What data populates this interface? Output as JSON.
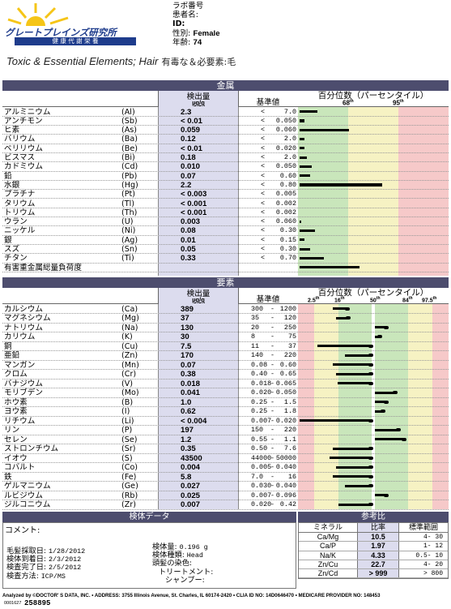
{
  "logo": {
    "name": "グレートプレインズ研究所",
    "tagline": "健 康   代 謝   栄 養"
  },
  "patient": {
    "lab_number_label": "ラボ番号",
    "name_label": "患者名:",
    "id_label": "ID:",
    "sex_label": "性別:",
    "sex": "Female",
    "age_label": "年齢:",
    "age": "74"
  },
  "report_title": {
    "en": "Toxic & Essential Elements; Hair",
    "jp_a": "有毒な＆必要素",
    "sep": ":",
    "jp_b": "毛"
  },
  "toxic": {
    "section_label": "金属",
    "col_result": "検出量",
    "col_unit": "µg/g",
    "col_ref": "基準値",
    "col_pct": "百分位数（パーセンタイル）",
    "pct_ticks": [
      "68",
      "95"
    ],
    "pct_tick_suffix": "th",
    "rows": [
      {
        "name": "アルミニウム",
        "sym": "(Al)",
        "result": "2.3",
        "lt": "<",
        "ref": "7.0",
        "bar": 0.12
      },
      {
        "name": "アンチモン",
        "sym": "(Sb)",
        "result": "< 0.01",
        "lt": "<",
        "ref": "0.050",
        "bar": 0.03
      },
      {
        "name": "ヒ素",
        "sym": "(As)",
        "result": "0.059",
        "lt": "<",
        "ref": "0.060",
        "bar": 0.33
      },
      {
        "name": "バリウム",
        "sym": "(Ba)",
        "result": "0.12",
        "lt": "<",
        "ref": "2.0",
        "bar": 0.03
      },
      {
        "name": "ベリリウム",
        "sym": "(Be)",
        "result": "< 0.01",
        "lt": "<",
        "ref": "0.020",
        "bar": 0.03
      },
      {
        "name": "ビスマス",
        "sym": "(Bi)",
        "result": "0.18",
        "lt": "<",
        "ref": "2.0",
        "bar": 0.05
      },
      {
        "name": "カドミウム",
        "sym": "(Cd)",
        "result": "0.010",
        "lt": "<",
        "ref": "0.050",
        "bar": 0.08
      },
      {
        "name": "鉛",
        "sym": "(Pb)",
        "result": "0.07",
        "lt": "<",
        "ref": "0.60",
        "bar": 0.07
      },
      {
        "name": "水銀",
        "sym": "(Hg)",
        "result": "2.2",
        "lt": "<",
        "ref": "0.80",
        "bar": 0.55
      },
      {
        "name": "プラチナ",
        "sym": "(Pt)",
        "result": "< 0.003",
        "lt": "<",
        "ref": "0.005",
        "bar": 0.0
      },
      {
        "name": "タリウム",
        "sym": "(Tl)",
        "result": "< 0.001",
        "lt": "<",
        "ref": "0.002",
        "bar": 0.0
      },
      {
        "name": "トリウム",
        "sym": "(Th)",
        "result": "< 0.001",
        "lt": "<",
        "ref": "0.002",
        "bar": 0.0
      },
      {
        "name": "ウラン",
        "sym": "(U)",
        "result": "0.003",
        "lt": "<",
        "ref": "0.060",
        "bar": 0.01
      },
      {
        "name": "ニッケル",
        "sym": "(Ni)",
        "result": "0.08",
        "lt": "<",
        "ref": "0.30",
        "bar": 0.1
      },
      {
        "name": "銀",
        "sym": "(Ag)",
        "result": "0.01",
        "lt": "<",
        "ref": "0.15",
        "bar": 0.03
      },
      {
        "name": "スズ",
        "sym": "(Sn)",
        "result": "0.05",
        "lt": "<",
        "ref": "0.30",
        "bar": 0.07
      },
      {
        "name": "チタン",
        "sym": "(Ti)",
        "result": "0.33",
        "lt": "<",
        "ref": "0.70",
        "bar": 0.16
      }
    ],
    "total_label": "有害重金属総量負荷度",
    "total_bar": 0.4
  },
  "essential": {
    "section_label": "要素",
    "col_result": "検出量",
    "col_unit": "µg/g",
    "col_ref": "基準値",
    "col_pct": "百分位数（パーセンタイル）",
    "pct_ticks": [
      "2.5",
      "16",
      "50",
      "84",
      "97.5"
    ],
    "pct_tick_suffix": "th",
    "rows": [
      {
        "name": "カルシウム",
        "sym": "(Ca)",
        "result": "389",
        "lo": "300",
        "hi": "1200",
        "from": 0.22,
        "to": 0.32
      },
      {
        "name": "マグネシウム",
        "sym": "(Mg)",
        "result": "37",
        "lo": "35",
        "hi": "120",
        "from": 0.24,
        "to": 0.33
      },
      {
        "name": "ナトリウム",
        "sym": "(Na)",
        "result": "130",
        "lo": "20",
        "hi": "250",
        "from": 0.5,
        "to": 0.58
      },
      {
        "name": "カリウム",
        "sym": "(K)",
        "result": "30",
        "lo": "8",
        "hi": "75",
        "from": 0.5,
        "to": 0.54
      },
      {
        "name": "銅",
        "sym": "(Cu)",
        "result": "7.5",
        "lo": "11",
        "hi": "37",
        "from": 0.12,
        "to": 0.48
      },
      {
        "name": "亜鉛",
        "sym": "(Zn)",
        "result": "170",
        "lo": "140",
        "hi": "220",
        "from": 0.3,
        "to": 0.48
      },
      {
        "name": "マンガン",
        "sym": "(Mn)",
        "result": "0.07",
        "lo": "0.08",
        "hi": "0.60",
        "from": 0.22,
        "to": 0.48
      },
      {
        "name": "クロム",
        "sym": "(Cr)",
        "result": "0.38",
        "lo": "0.40",
        "hi": "0.65",
        "from": 0.24,
        "to": 0.48
      },
      {
        "name": "バナジウム",
        "sym": "(V)",
        "result": "0.018",
        "lo": "0.018",
        "hi": "0.065",
        "from": 0.25,
        "to": 0.48
      },
      {
        "name": "モリブデン",
        "sym": "(Mo)",
        "result": "0.041",
        "lo": "0.020",
        "hi": "0.050",
        "from": 0.5,
        "to": 0.64
      },
      {
        "name": "ホウ素",
        "sym": "(B)",
        "result": "1.0",
        "lo": "0.25",
        "hi": "1.5",
        "from": 0.5,
        "to": 0.58
      },
      {
        "name": "ヨウ素",
        "sym": "(I)",
        "result": "0.62",
        "lo": "0.25",
        "hi": "1.8",
        "from": 0.5,
        "to": 0.56
      },
      {
        "name": "リチウム",
        "sym": "(Li)",
        "result": "< 0.004",
        "lo": "0.007",
        "hi": "0.020",
        "from": 0.0,
        "to": 0.48
      },
      {
        "name": "リン",
        "sym": "(P)",
        "result": "197",
        "lo": "150",
        "hi": "220",
        "from": 0.5,
        "to": 0.66
      },
      {
        "name": "セレン",
        "sym": "(Se)",
        "result": "1.2",
        "lo": "0.55",
        "hi": "1.1",
        "from": 0.5,
        "to": 0.7
      },
      {
        "name": "ストロンチウム",
        "sym": "(Sr)",
        "result": "0.35",
        "lo": "0.50",
        "hi": "7.6",
        "from": 0.22,
        "to": 0.48
      },
      {
        "name": "イオウ",
        "sym": "(S)",
        "result": "43500",
        "lo": "44000",
        "hi": "50000",
        "from": 0.2,
        "to": 0.48
      },
      {
        "name": "コバルト",
        "sym": "(Co)",
        "result": "0.004",
        "lo": "0.005",
        "hi": "0.040",
        "from": 0.24,
        "to": 0.48
      },
      {
        "name": "鉄",
        "sym": "(Fe)",
        "result": "5.8",
        "lo": "7.0",
        "hi": "16",
        "from": 0.22,
        "to": 0.48
      },
      {
        "name": "ゲルマニウム",
        "sym": "(Ge)",
        "result": "0.027",
        "lo": "0.030",
        "hi": "0.040",
        "from": 0.3,
        "to": 0.48
      },
      {
        "name": "ルビジウム",
        "sym": "(Rb)",
        "result": "0.025",
        "lo": "0.007",
        "hi": "0.096",
        "from": 0.5,
        "to": 0.58
      },
      {
        "name": "ジルコニウム",
        "sym": "(Zr)",
        "result": "0.007",
        "lo": "0.020",
        "hi": "0.42",
        "from": 0.26,
        "to": 0.48
      }
    ]
  },
  "specimen": {
    "header": "検体データ",
    "comment_label": "コメント:",
    "collected_label": "毛髪採取日:",
    "collected": "1/28/2012",
    "received_label": "検体到着日:",
    "received": "2/3/2012",
    "completed_label": "検査完了日:",
    "completed": "2/5/2012",
    "method_label": "検査方法:",
    "method": "ICP/MS",
    "weight_label": "検体量:",
    "weight": "0.196 g",
    "type_label": "検体種類:",
    "type": "Head",
    "color_label": "頭髪の染色:",
    "color": "",
    "treatment_label": "トリートメント:",
    "treatment": "",
    "shampoo_label": "シャンプー:",
    "shampoo": ""
  },
  "ratios": {
    "header": "参考比",
    "col_mineral": "ミネラル",
    "col_ratio": "比率",
    "col_range": "標準範囲",
    "rows": [
      {
        "pair": "Ca/Mg",
        "value": "10.5",
        "range": "4- 30"
      },
      {
        "pair": "Ca/P",
        "value": "1.97",
        "range": "1- 12"
      },
      {
        "pair": "Na/K",
        "value": "4.33",
        "range": "0.5- 10"
      },
      {
        "pair": "Zn/Cu",
        "value": "22.7",
        "range": "4- 20"
      },
      {
        "pair": "Zn/Cd",
        "value": "> 999",
        "range": "> 800"
      }
    ]
  },
  "footer": {
    "line": "Analyzed by ©DOCTOR' S DATA, INC. • ADDRESS: 3755 Illinois Avenue, St. Charles, IL 60174-2420 • CLIA ID NO: 14D0646470 • MEDICARE PROVIDER NO: 148453",
    "code": "0001627",
    "number": "258895"
  },
  "colors": {
    "red": "#f6c9c9",
    "yellow": "#f6f2c3",
    "green": "#c9e6bb",
    "band": "#4d4d6e",
    "lav": "#dcdcee"
  }
}
